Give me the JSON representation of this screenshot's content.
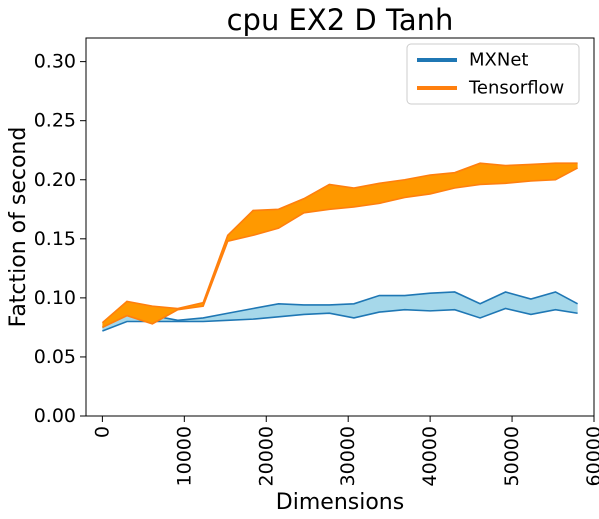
{
  "chart_data": {
    "type": "line",
    "title": "cpu EX2 D Tanh",
    "xlabel": "Dimensions",
    "ylabel": "Fatction of second",
    "xlim": [
      -2000,
      60000
    ],
    "ylim": [
      0.0,
      0.32
    ],
    "xticks": [
      0,
      10000,
      20000,
      30000,
      40000,
      50000,
      60000
    ],
    "yticks": [
      0.0,
      0.05,
      0.1,
      0.15,
      0.2,
      0.25,
      0.3
    ],
    "xtick_labels": [
      "0",
      "10000",
      "20000",
      "30000",
      "40000",
      "50000",
      "60000"
    ],
    "ytick_labels": [
      "0.00",
      "0.05",
      "0.10",
      "0.15",
      "0.20",
      "0.25",
      "0.30"
    ],
    "grid": false,
    "legend_position": "top-right",
    "x": [
      0,
      3000,
      6100,
      9200,
      12300,
      15300,
      18400,
      21500,
      24600,
      27700,
      30700,
      33800,
      36900,
      40000,
      43000,
      46100,
      49200,
      52300,
      55300,
      58000
    ],
    "series": [
      {
        "name": "MXNet",
        "color": "#1f77b4",
        "fill_color": "#a6d8ea",
        "upper": [
          0.075,
          0.088,
          0.085,
          0.081,
          0.083,
          0.087,
          0.091,
          0.095,
          0.094,
          0.094,
          0.095,
          0.102,
          0.102,
          0.104,
          0.105,
          0.095,
          0.105,
          0.099,
          0.105,
          0.095
        ],
        "lower": [
          0.072,
          0.08,
          0.08,
          0.08,
          0.08,
          0.081,
          0.082,
          0.084,
          0.086,
          0.087,
          0.083,
          0.088,
          0.09,
          0.089,
          0.09,
          0.083,
          0.091,
          0.086,
          0.09,
          0.087
        ]
      },
      {
        "name": "Tensorflow",
        "color": "#ff7f0e",
        "fill_color": "#ff9900",
        "upper": [
          0.079,
          0.097,
          0.093,
          0.091,
          0.096,
          0.153,
          0.174,
          0.175,
          0.184,
          0.196,
          0.193,
          0.197,
          0.2,
          0.204,
          0.206,
          0.214,
          0.212,
          0.213,
          0.214,
          0.214
        ],
        "lower": [
          0.075,
          0.085,
          0.078,
          0.09,
          0.093,
          0.148,
          0.153,
          0.159,
          0.172,
          0.175,
          0.177,
          0.18,
          0.185,
          0.188,
          0.193,
          0.196,
          0.197,
          0.199,
          0.2,
          0.21
        ]
      }
    ]
  }
}
